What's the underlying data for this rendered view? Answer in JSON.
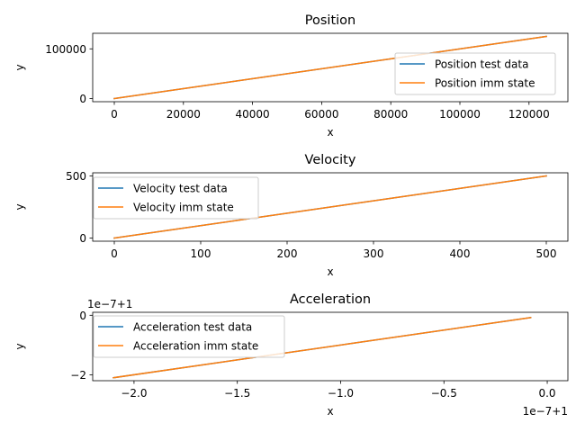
{
  "chart_data": [
    {
      "type": "line",
      "title": "Position",
      "xlabel": "x",
      "ylabel": "y",
      "xlim": [
        -6250,
        131250
      ],
      "ylim": [
        -6250,
        131250
      ],
      "xticks": [
        0,
        20000,
        40000,
        60000,
        80000,
        100000,
        120000
      ],
      "xtick_labels": [
        "0",
        "20000",
        "40000",
        "60000",
        "80000",
        "100000",
        "120000"
      ],
      "yticks": [
        0,
        100000
      ],
      "ytick_labels": [
        "0",
        "100000"
      ],
      "offset_x": "",
      "offset_y": "",
      "legend_position": "lower-right",
      "series": [
        {
          "name": "Position test data",
          "color": "#1f77b4",
          "x": [
            0,
            125000
          ],
          "y": [
            0,
            125000
          ]
        },
        {
          "name": "Position imm state",
          "color": "#ff7f0e",
          "x": [
            0,
            125000
          ],
          "y": [
            0,
            125000
          ]
        }
      ]
    },
    {
      "type": "line",
      "title": "Velocity",
      "xlabel": "x",
      "ylabel": "y",
      "xlim": [
        -25,
        525
      ],
      "ylim": [
        -25,
        525
      ],
      "xticks": [
        0,
        100,
        200,
        300,
        400,
        500
      ],
      "xtick_labels": [
        "0",
        "100",
        "200",
        "300",
        "400",
        "500"
      ],
      "yticks": [
        0,
        500
      ],
      "ytick_labels": [
        "0",
        "500"
      ],
      "offset_x": "",
      "offset_y": "",
      "legend_position": "upper-left",
      "series": [
        {
          "name": "Velocity test data",
          "color": "#1f77b4",
          "x": [
            0,
            500
          ],
          "y": [
            0,
            500
          ]
        },
        {
          "name": "Velocity imm state",
          "color": "#ff7f0e",
          "x": [
            0,
            500
          ],
          "y": [
            0,
            500
          ]
        }
      ]
    },
    {
      "type": "line",
      "title": "Acceleration",
      "xlabel": "x",
      "ylabel": "y",
      "xlim": [
        -2.2,
        0.1
      ],
      "ylim": [
        -2.2,
        0.1
      ],
      "xticks": [
        -2.0,
        -1.5,
        -1.0,
        -0.5,
        0.0
      ],
      "xtick_labels": [
        "−2.0",
        "−1.5",
        "−1.0",
        "−0.5",
        "0.0"
      ],
      "yticks": [
        -2,
        0
      ],
      "ytick_labels": [
        "−2",
        "0"
      ],
      "offset_x": "1e−7+1",
      "offset_y": "1e−7+1",
      "legend_position": "upper-left",
      "series": [
        {
          "name": "Acceleration test data",
          "color": "#1f77b4",
          "x": [
            -2.1,
            -0.08
          ],
          "y": [
            -2.1,
            -0.08
          ]
        },
        {
          "name": "Acceleration imm state",
          "color": "#ff7f0e",
          "x": [
            -2.1,
            -0.08
          ],
          "y": [
            -2.1,
            -0.08
          ]
        }
      ]
    }
  ]
}
